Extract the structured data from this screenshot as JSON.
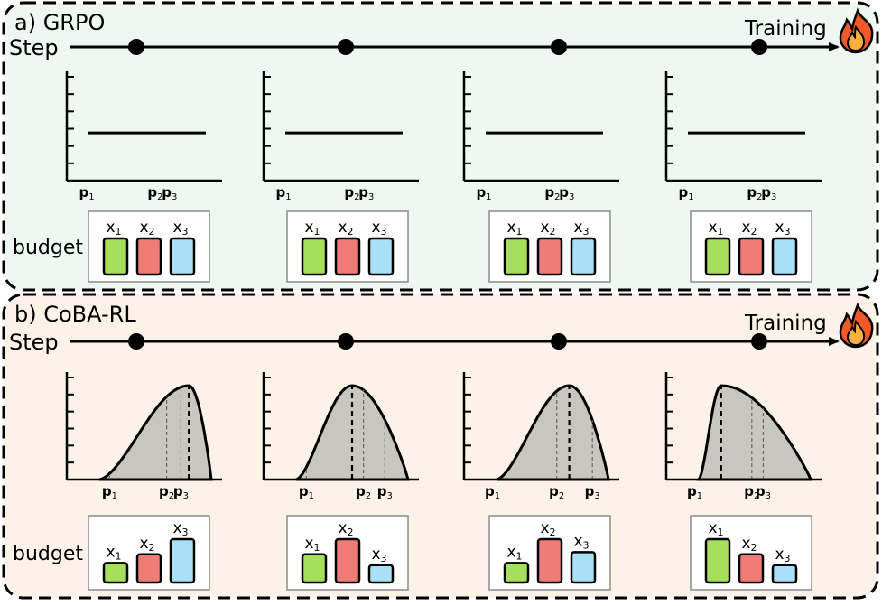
{
  "colors": {
    "panel_a_bg": "#eef8f0",
    "panel_b_bg": "#fdf2e7",
    "curve_fill": "#c9c5bf",
    "bar_x1": "#a6e05a",
    "bar_x2": "#f07c78",
    "bar_x3": "#a8e1f5",
    "box_border": "#8c8c8c",
    "flame_outer": "#f05a28",
    "flame_inner": "#fbb040"
  },
  "step_label": "Step",
  "training_label": "Training",
  "training_icon": "fire-icon",
  "budget_label": "budget",
  "point_labels": [
    {
      "base": "p",
      "sub": "1"
    },
    {
      "base": "p",
      "sub": "2"
    },
    {
      "base": "p",
      "sub": "3"
    }
  ],
  "bar_labels": [
    {
      "base": "x",
      "sub": "1"
    },
    {
      "base": "x",
      "sub": "2"
    },
    {
      "base": "x",
      "sub": "3"
    }
  ],
  "panels": [
    {
      "id": "a",
      "title": "a)  GRPO",
      "steps": [
        {
          "distribution": "flat",
          "p_positions": [
            0.14,
            0.62,
            0.72
          ],
          "budget": [
            1,
            1,
            1
          ]
        },
        {
          "distribution": "flat",
          "p_positions": [
            0.14,
            0.62,
            0.72
          ],
          "budget": [
            1,
            1,
            1
          ]
        },
        {
          "distribution": "flat",
          "p_positions": [
            0.14,
            0.62,
            0.72
          ],
          "budget": [
            1,
            1,
            1
          ]
        },
        {
          "distribution": "flat",
          "p_positions": [
            0.14,
            0.62,
            0.72
          ],
          "budget": [
            1,
            1,
            1
          ]
        }
      ]
    },
    {
      "id": "b",
      "title": "b)  CoBA-RL",
      "steps": [
        {
          "distribution": "peak-right",
          "mode": 0.8,
          "p_positions": [
            0.3,
            0.7,
            0.8
          ],
          "budget": [
            0.45,
            0.65,
            1.0
          ]
        },
        {
          "distribution": "peak-center",
          "mode": 0.5,
          "p_positions": [
            0.3,
            0.7,
            0.85
          ],
          "budget": [
            0.65,
            1.0,
            0.4
          ]
        },
        {
          "distribution": "peak-center",
          "mode": 0.65,
          "p_positions": [
            0.2,
            0.65,
            0.9
          ],
          "budget": [
            0.45,
            1.0,
            0.7
          ]
        },
        {
          "distribution": "peak-left",
          "mode": 0.2,
          "p_positions": [
            0.2,
            0.6,
            0.68
          ],
          "budget": [
            1.0,
            0.65,
            0.4
          ]
        }
      ]
    }
  ]
}
